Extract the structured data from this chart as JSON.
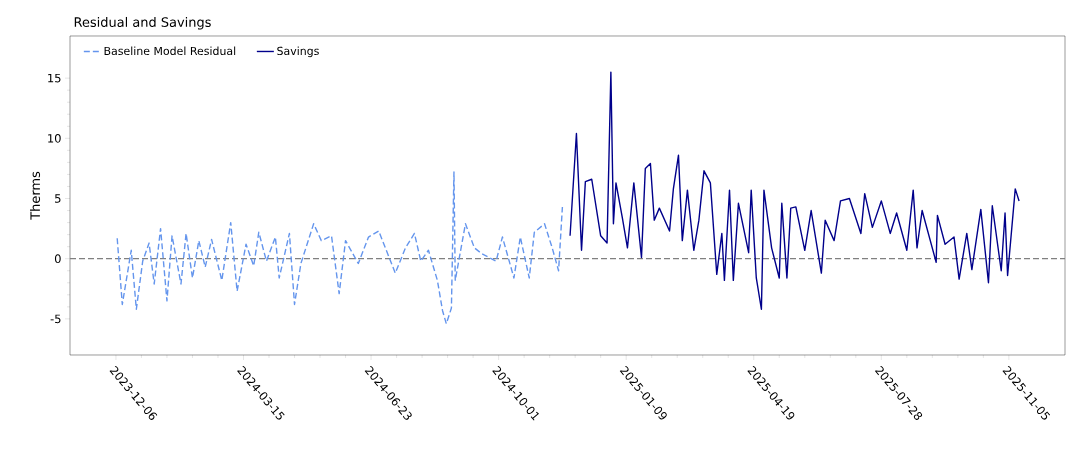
{
  "chart_data": {
    "type": "line",
    "title": "Residual and Savings",
    "ylabel": "Therms",
    "xlim": [
      "2023-10-31",
      "2025-12-19"
    ],
    "ylim": [
      -8,
      18.5
    ],
    "xticks": [
      "2023-12-06",
      "2024-03-15",
      "2024-06-23",
      "2024-10-01",
      "2025-01-09",
      "2025-04-19",
      "2025-07-28",
      "2025-11-05"
    ],
    "yticks": [
      -5,
      0,
      5,
      10,
      15
    ],
    "legend": "top left",
    "grid": false,
    "marker": "none",
    "ref_lines": [
      {
        "axis": "y",
        "value": 0,
        "color": "#808080",
        "line_style": "dashed"
      }
    ],
    "series": [
      {
        "name": "Baseline Model Residual",
        "color": "#6495ed",
        "line_style": "dashed",
        "x": [
          "2023-12-07",
          "2023-12-11",
          "2023-12-18",
          "2023-12-22",
          "2023-12-27",
          "2024-01-01",
          "2024-01-05",
          "2024-01-10",
          "2024-01-15",
          "2024-01-19",
          "2024-01-26",
          "2024-01-30",
          "2024-02-04",
          "2024-02-09",
          "2024-02-14",
          "2024-02-19",
          "2024-02-27",
          "2024-03-05",
          "2024-03-10",
          "2024-03-17",
          "2024-03-23",
          "2024-03-27",
          "2024-04-02",
          "2024-04-09",
          "2024-04-12",
          "2024-04-20",
          "2024-04-24",
          "2024-04-29",
          "2024-05-09",
          "2024-05-15",
          "2024-05-23",
          "2024-05-29",
          "2024-06-03",
          "2024-06-13",
          "2024-06-21",
          "2024-06-29",
          "2024-07-12",
          "2024-07-20",
          "2024-07-27",
          "2024-08-01",
          "2024-08-07",
          "2024-08-14",
          "2024-08-18",
          "2024-08-21",
          "2024-08-25",
          "2024-08-27",
          "2024-08-28",
          "2024-09-05",
          "2024-09-12",
          "2024-09-18",
          "2024-09-29",
          "2024-10-04",
          "2024-10-13",
          "2024-10-18",
          "2024-10-25",
          "2024-10-29",
          "2024-11-06",
          "2024-11-12",
          "2024-11-17",
          "2024-11-20"
        ],
        "values": [
          1.7,
          -3.8,
          0.7,
          -4.2,
          -0.2,
          1.3,
          -2.1,
          2.5,
          -3.5,
          1.9,
          -2.1,
          2.1,
          -1.6,
          1.5,
          -0.7,
          1.6,
          -1.8,
          3,
          -2.7,
          1.2,
          -0.6,
          2.2,
          -0.2,
          1.8,
          -1.6,
          2.1,
          -3.8,
          -0.4,
          2.9,
          1.5,
          1.9,
          -2.9,
          1.5,
          -0.4,
          1.8,
          2.3,
          -1.2,
          0.9,
          2.1,
          -0.2,
          0.7,
          -1.8,
          -4.3,
          -5.4,
          -4.1,
          7.2,
          -1.8,
          2.9,
          0.9,
          0.4,
          -0.2,
          1.8,
          -1.6,
          1.8,
          -1.6,
          2.2,
          2.9,
          0.9,
          -1,
          4.3
        ]
      },
      {
        "name": "Savings",
        "color": "#00008b",
        "line_style": "solid",
        "x": [
          "2024-11-26",
          "2024-12-01",
          "2024-12-05",
          "2024-12-08",
          "2024-12-13",
          "2024-12-20",
          "2024-12-25",
          "2024-12-28",
          "2024-12-30",
          "2025-01-01",
          "2025-01-06",
          "2025-01-10",
          "2025-01-15",
          "2025-01-21",
          "2025-01-24",
          "2025-01-28",
          "2025-01-31",
          "2025-02-04",
          "2025-02-12",
          "2025-02-15",
          "2025-02-19",
          "2025-02-22",
          "2025-02-26",
          "2025-03-03",
          "2025-03-07",
          "2025-03-11",
          "2025-03-16",
          "2025-03-21",
          "2025-03-25",
          "2025-03-27",
          "2025-03-31",
          "2025-04-03",
          "2025-04-07",
          "2025-04-15",
          "2025-04-17",
          "2025-04-21",
          "2025-04-25",
          "2025-04-27",
          "2025-05-03",
          "2025-05-09",
          "2025-05-11",
          "2025-05-15",
          "2025-05-18",
          "2025-05-22",
          "2025-05-29",
          "2025-06-03",
          "2025-06-11",
          "2025-06-14",
          "2025-06-21",
          "2025-06-26",
          "2025-07-03",
          "2025-07-12",
          "2025-07-15",
          "2025-07-21",
          "2025-07-28",
          "2025-08-04",
          "2025-08-09",
          "2025-08-17",
          "2025-08-22",
          "2025-08-25",
          "2025-08-29",
          "2025-09-09",
          "2025-09-10",
          "2025-09-16",
          "2025-09-23",
          "2025-09-27",
          "2025-10-03",
          "2025-10-07",
          "2025-10-14",
          "2025-10-20",
          "2025-10-23",
          "2025-10-30",
          "2025-11-02",
          "2025-11-04",
          "2025-11-10",
          "2025-11-13"
        ],
        "values": [
          1.9,
          10.4,
          0.7,
          6.4,
          6.6,
          1.9,
          1.3,
          15.5,
          2.9,
          6.3,
          3.4,
          0.9,
          6.3,
          0.1,
          7.5,
          7.9,
          3.2,
          4.2,
          2.3,
          5.8,
          8.6,
          1.5,
          5.7,
          0.7,
          3.2,
          7.3,
          6.3,
          -1.3,
          2.1,
          -1.8,
          5.7,
          -1.8,
          4.6,
          0.5,
          5.7,
          -1.6,
          -4.2,
          5.7,
          0.9,
          -1.6,
          4.6,
          -1.6,
          4.2,
          4.3,
          0.7,
          4,
          -1.2,
          3.2,
          1.5,
          4.8,
          5,
          2.1,
          5.4,
          2.6,
          4.8,
          2.1,
          3.8,
          0.7,
          5.7,
          0.9,
          4,
          -0.3,
          3.6,
          1.2,
          1.8,
          -1.7,
          2.1,
          -0.9,
          4.1,
          -2,
          4.4,
          -1,
          3.8,
          -1.4,
          5.8,
          4.8
        ]
      }
    ]
  }
}
